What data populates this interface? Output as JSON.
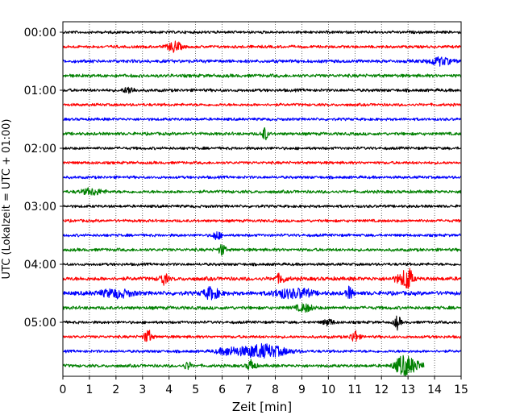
{
  "chart_data": {
    "type": "line",
    "xlabel": "Zeit  [min]",
    "ylabel": "UTC (Lokalzeit = UTC + 01:00)",
    "xlim": [
      0,
      15
    ],
    "x_ticks": [
      0,
      1,
      2,
      3,
      4,
      5,
      6,
      7,
      8,
      9,
      10,
      11,
      12,
      13,
      14,
      15
    ],
    "y_tick_labels": [
      "00:00",
      "01:00",
      "02:00",
      "03:00",
      "04:00",
      "05:00"
    ],
    "x_grid": "dotted",
    "legend": "none",
    "trace_colors": [
      "#000000",
      "#ff0000",
      "#0000ff",
      "#008000"
    ],
    "rows": [
      {
        "start": "00:00",
        "color": "#000000",
        "amplitude": 0.22,
        "events": []
      },
      {
        "start": "00:15",
        "color": "#ff0000",
        "amplitude": 0.22,
        "events": [
          {
            "t": 4.2,
            "amp": 0.7,
            "dur": 0.25
          }
        ]
      },
      {
        "start": "00:30",
        "color": "#0000ff",
        "amplitude": 0.26,
        "events": [
          {
            "t": 14.2,
            "amp": 0.5,
            "dur": 0.4
          }
        ]
      },
      {
        "start": "00:45",
        "color": "#008000",
        "amplitude": 0.26,
        "events": []
      },
      {
        "start": "01:00",
        "color": "#000000",
        "amplitude": 0.24,
        "events": [
          {
            "t": 2.5,
            "amp": 0.45,
            "dur": 0.2
          }
        ]
      },
      {
        "start": "01:15",
        "color": "#ff0000",
        "amplitude": 0.22,
        "events": []
      },
      {
        "start": "01:30",
        "color": "#0000ff",
        "amplitude": 0.22,
        "events": []
      },
      {
        "start": "01:45",
        "color": "#008000",
        "amplitude": 0.24,
        "events": [
          {
            "t": 7.6,
            "amp": 0.85,
            "dur": 0.12
          }
        ]
      },
      {
        "start": "02:00",
        "color": "#000000",
        "amplitude": 0.22,
        "events": []
      },
      {
        "start": "02:15",
        "color": "#ff0000",
        "amplitude": 0.22,
        "events": []
      },
      {
        "start": "02:30",
        "color": "#0000ff",
        "amplitude": 0.22,
        "events": []
      },
      {
        "start": "02:45",
        "color": "#008000",
        "amplitude": 0.24,
        "events": [
          {
            "t": 1.1,
            "amp": 0.4,
            "dur": 0.4
          }
        ]
      },
      {
        "start": "03:00",
        "color": "#000000",
        "amplitude": 0.22,
        "events": []
      },
      {
        "start": "03:15",
        "color": "#ff0000",
        "amplitude": 0.22,
        "events": []
      },
      {
        "start": "03:30",
        "color": "#0000ff",
        "amplitude": 0.22,
        "events": [
          {
            "t": 5.8,
            "amp": 0.6,
            "dur": 0.15
          }
        ]
      },
      {
        "start": "03:45",
        "color": "#008000",
        "amplitude": 0.24,
        "events": [
          {
            "t": 6.0,
            "amp": 0.8,
            "dur": 0.12
          }
        ]
      },
      {
        "start": "04:00",
        "color": "#000000",
        "amplitude": 0.22,
        "events": []
      },
      {
        "start": "04:15",
        "color": "#ff0000",
        "amplitude": 0.3,
        "events": [
          {
            "t": 3.8,
            "amp": 0.75,
            "dur": 0.15
          },
          {
            "t": 8.2,
            "amp": 0.55,
            "dur": 0.2
          },
          {
            "t": 12.8,
            "amp": 0.6,
            "dur": 0.3
          },
          {
            "t": 13.0,
            "amp": 1.3,
            "dur": 0.15
          }
        ]
      },
      {
        "start": "04:30",
        "color": "#0000ff",
        "amplitude": 0.32,
        "events": [
          {
            "t": 2.0,
            "amp": 0.5,
            "dur": 0.6
          },
          {
            "t": 5.6,
            "amp": 0.75,
            "dur": 0.3
          },
          {
            "t": 8.3,
            "amp": 0.5,
            "dur": 0.4
          },
          {
            "t": 9.0,
            "amp": 0.55,
            "dur": 0.4
          },
          {
            "t": 10.8,
            "amp": 0.8,
            "dur": 0.12
          }
        ]
      },
      {
        "start": "04:45",
        "color": "#008000",
        "amplitude": 0.26,
        "events": [
          {
            "t": 9.1,
            "amp": 0.5,
            "dur": 0.3
          }
        ]
      },
      {
        "start": "05:00",
        "color": "#000000",
        "amplitude": 0.22,
        "events": [
          {
            "t": 10.0,
            "amp": 0.4,
            "dur": 0.2
          },
          {
            "t": 12.6,
            "amp": 0.9,
            "dur": 0.12
          }
        ]
      },
      {
        "start": "05:15",
        "color": "#ff0000",
        "amplitude": 0.22,
        "events": [
          {
            "t": 3.2,
            "amp": 0.9,
            "dur": 0.15
          },
          {
            "t": 11.0,
            "amp": 0.85,
            "dur": 0.15
          }
        ]
      },
      {
        "start": "05:30",
        "color": "#0000ff",
        "amplitude": 0.22,
        "events": [
          {
            "t": 7.5,
            "amp": 0.9,
            "dur": 0.9
          },
          {
            "t": 6.2,
            "amp": 0.4,
            "dur": 0.4
          }
        ]
      },
      {
        "start": "05:45",
        "color": "#008000",
        "amplitude": 0.24,
        "events": [
          {
            "t": 4.7,
            "amp": 0.55,
            "dur": 0.12
          },
          {
            "t": 7.1,
            "amp": 0.8,
            "dur": 0.15
          },
          {
            "t": 12.8,
            "amp": 1.2,
            "dur": 0.3
          },
          {
            "t": 13.2,
            "amp": 0.65,
            "dur": 0.35
          }
        ]
      }
    ],
    "last_row_end_minute": 13.6
  }
}
